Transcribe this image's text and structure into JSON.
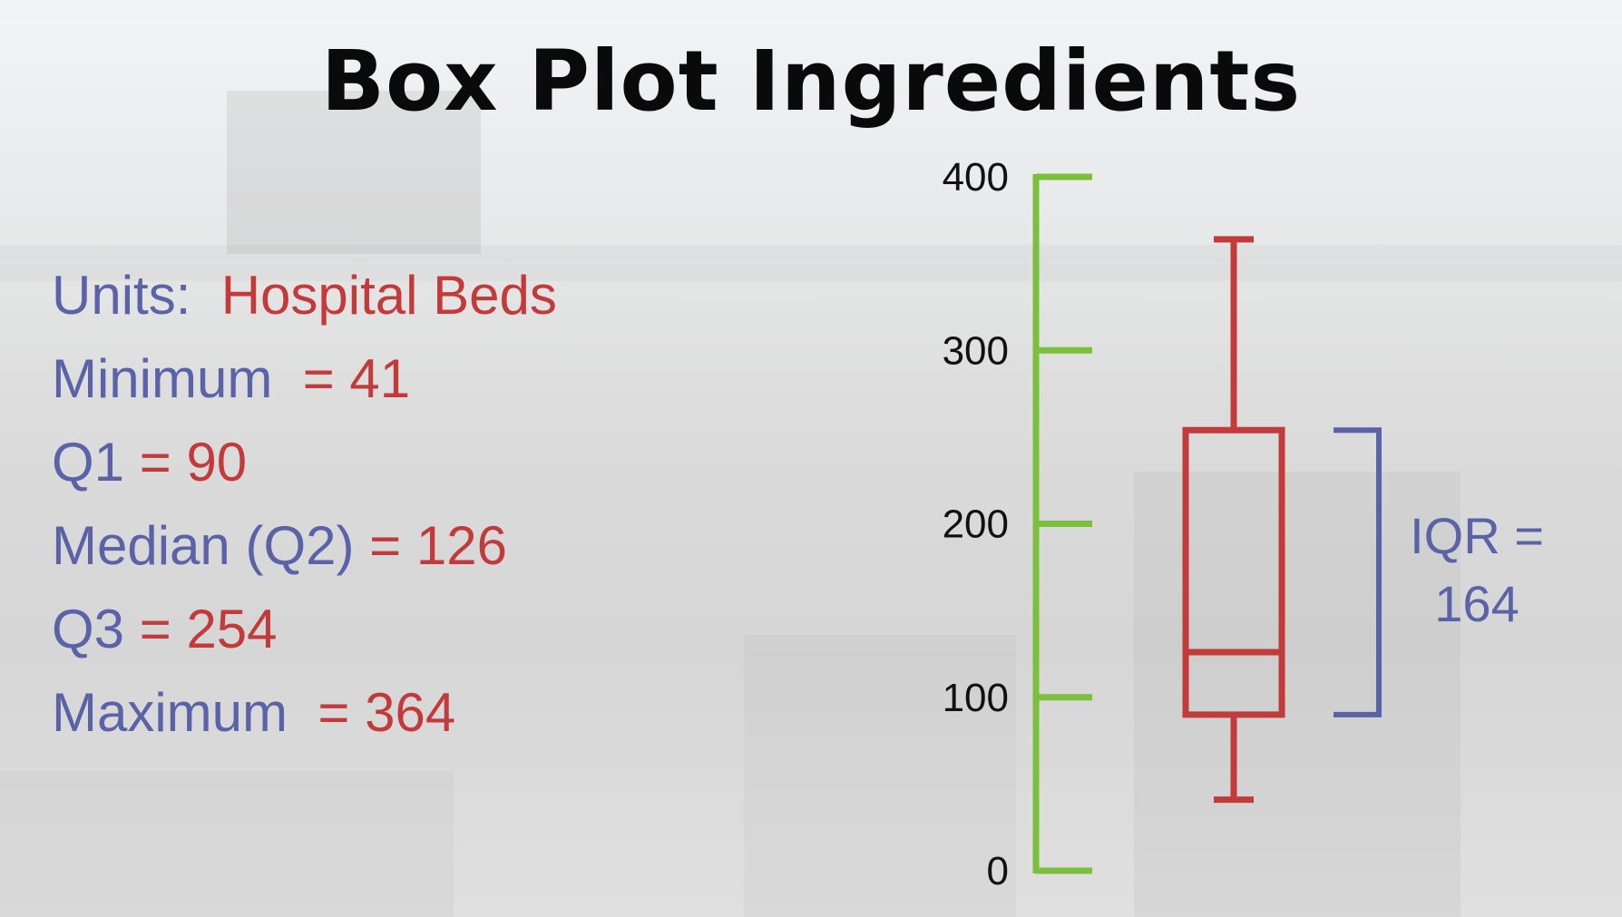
{
  "title": "Box Plot Ingredients",
  "stats": {
    "units_label": "Units:",
    "units_value": "Hospital Beds",
    "minimum_label": "Minimum",
    "minimum_value": "41",
    "q1_label": "Q1",
    "q1_value": "90",
    "median_label": "Median (Q2)",
    "median_value": "126",
    "q3_label": "Q3",
    "q3_value": "254",
    "maximum_label": "Maximum",
    "maximum_value": "364",
    "equals": "="
  },
  "iqr": {
    "label": "IQR =",
    "value": "164"
  },
  "colors": {
    "label": "#5a62a8",
    "value": "#c33a3a",
    "axis": "#7cbf3c",
    "box": "#c33a3a",
    "bracket": "#5a62a8"
  },
  "chart_data": {
    "type": "box",
    "title": "Box Plot Ingredients",
    "xlabel": "",
    "ylabel": "",
    "ylim": [
      0,
      400
    ],
    "yticks": [
      0,
      100,
      200,
      300,
      400
    ],
    "grid": false,
    "box": {
      "min": 41,
      "q1": 90,
      "median": 126,
      "q3": 254,
      "max": 364
    },
    "annotations": [
      {
        "text": "IQR = 164",
        "spans": [
          90,
          254
        ]
      }
    ]
  }
}
